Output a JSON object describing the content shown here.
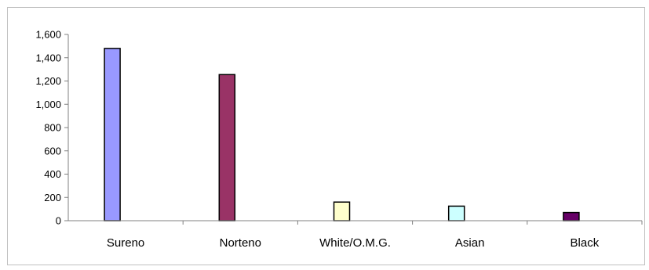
{
  "chart_data": {
    "type": "bar",
    "title": "",
    "xlabel": "",
    "ylabel": "",
    "categories": [
      "Sureno",
      "Norteno",
      "White/O.M.G.",
      "Asian",
      "Black"
    ],
    "values": [
      1480,
      1255,
      160,
      125,
      70
    ],
    "bar_colors": [
      "#9999ff",
      "#993366",
      "#ffffcc",
      "#ccffff",
      "#660066"
    ],
    "ylim": [
      0,
      1600
    ],
    "y_ticks": [
      0,
      200,
      400,
      600,
      800,
      1000,
      1200,
      1400,
      1600
    ],
    "y_tick_labels": [
      "0",
      "200",
      "400",
      "600",
      "800",
      "1,000",
      "1,200",
      "1,400",
      "1,600"
    ],
    "grid": false,
    "legend": "none",
    "bar_position": "left-of-category-center"
  }
}
